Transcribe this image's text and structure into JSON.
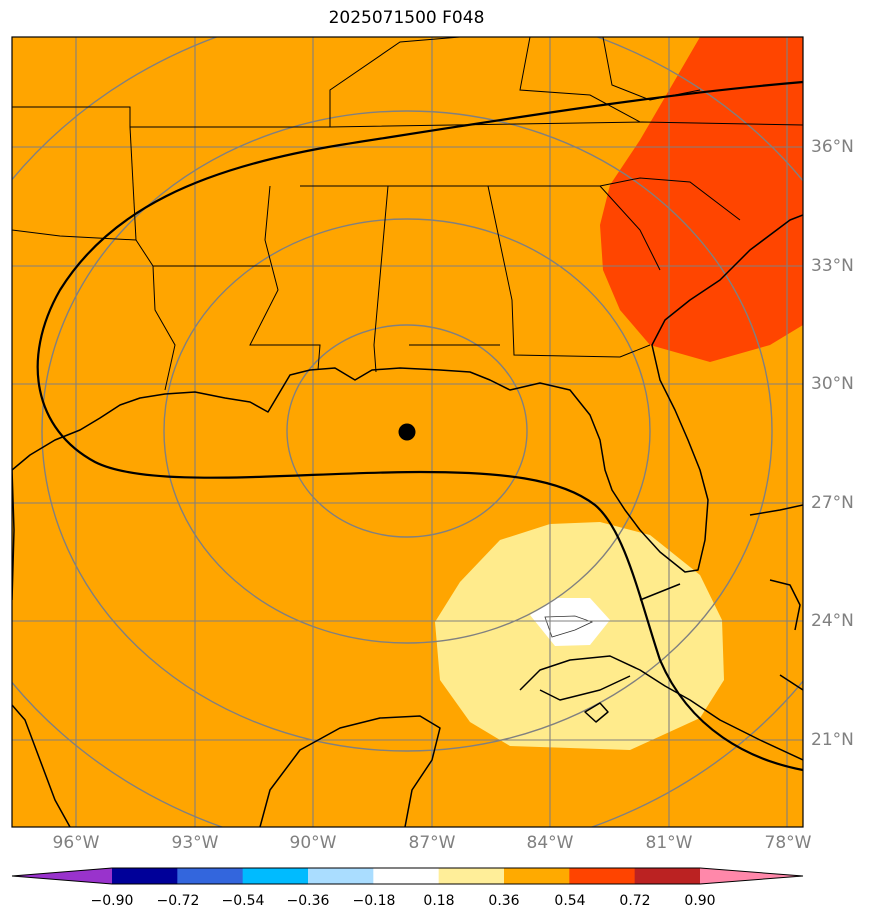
{
  "title": "2025071500 F048",
  "longitude_labels": [
    "96°W",
    "93°W",
    "90°W",
    "87°W",
    "84°W",
    "81°W",
    "78°W"
  ],
  "latitude_labels": [
    "36°N",
    "33°N",
    "30°N",
    "27°N",
    "24°N",
    "21°N"
  ],
  "colorbar": {
    "colors": [
      "#9933cc",
      "#000099",
      "#3366dd",
      "#00bbff",
      "#aaddff",
      "#ffffff",
      "#ffee99",
      "#ffaa00",
      "#ff4400",
      "#bb2222",
      "#ff88aa"
    ],
    "tick_labels": [
      "−0.90",
      "−0.72",
      "−0.54",
      "−0.36",
      "−0.18",
      "0.18",
      "0.36",
      "0.54",
      "0.72",
      "0.90"
    ]
  },
  "map": {
    "background_color": "#ffa500",
    "high_region_color": "#ff4500",
    "low_region_color": "#ffeb8c",
    "min_region_color": "#ffffff",
    "center_marker_color": "#000000"
  }
}
